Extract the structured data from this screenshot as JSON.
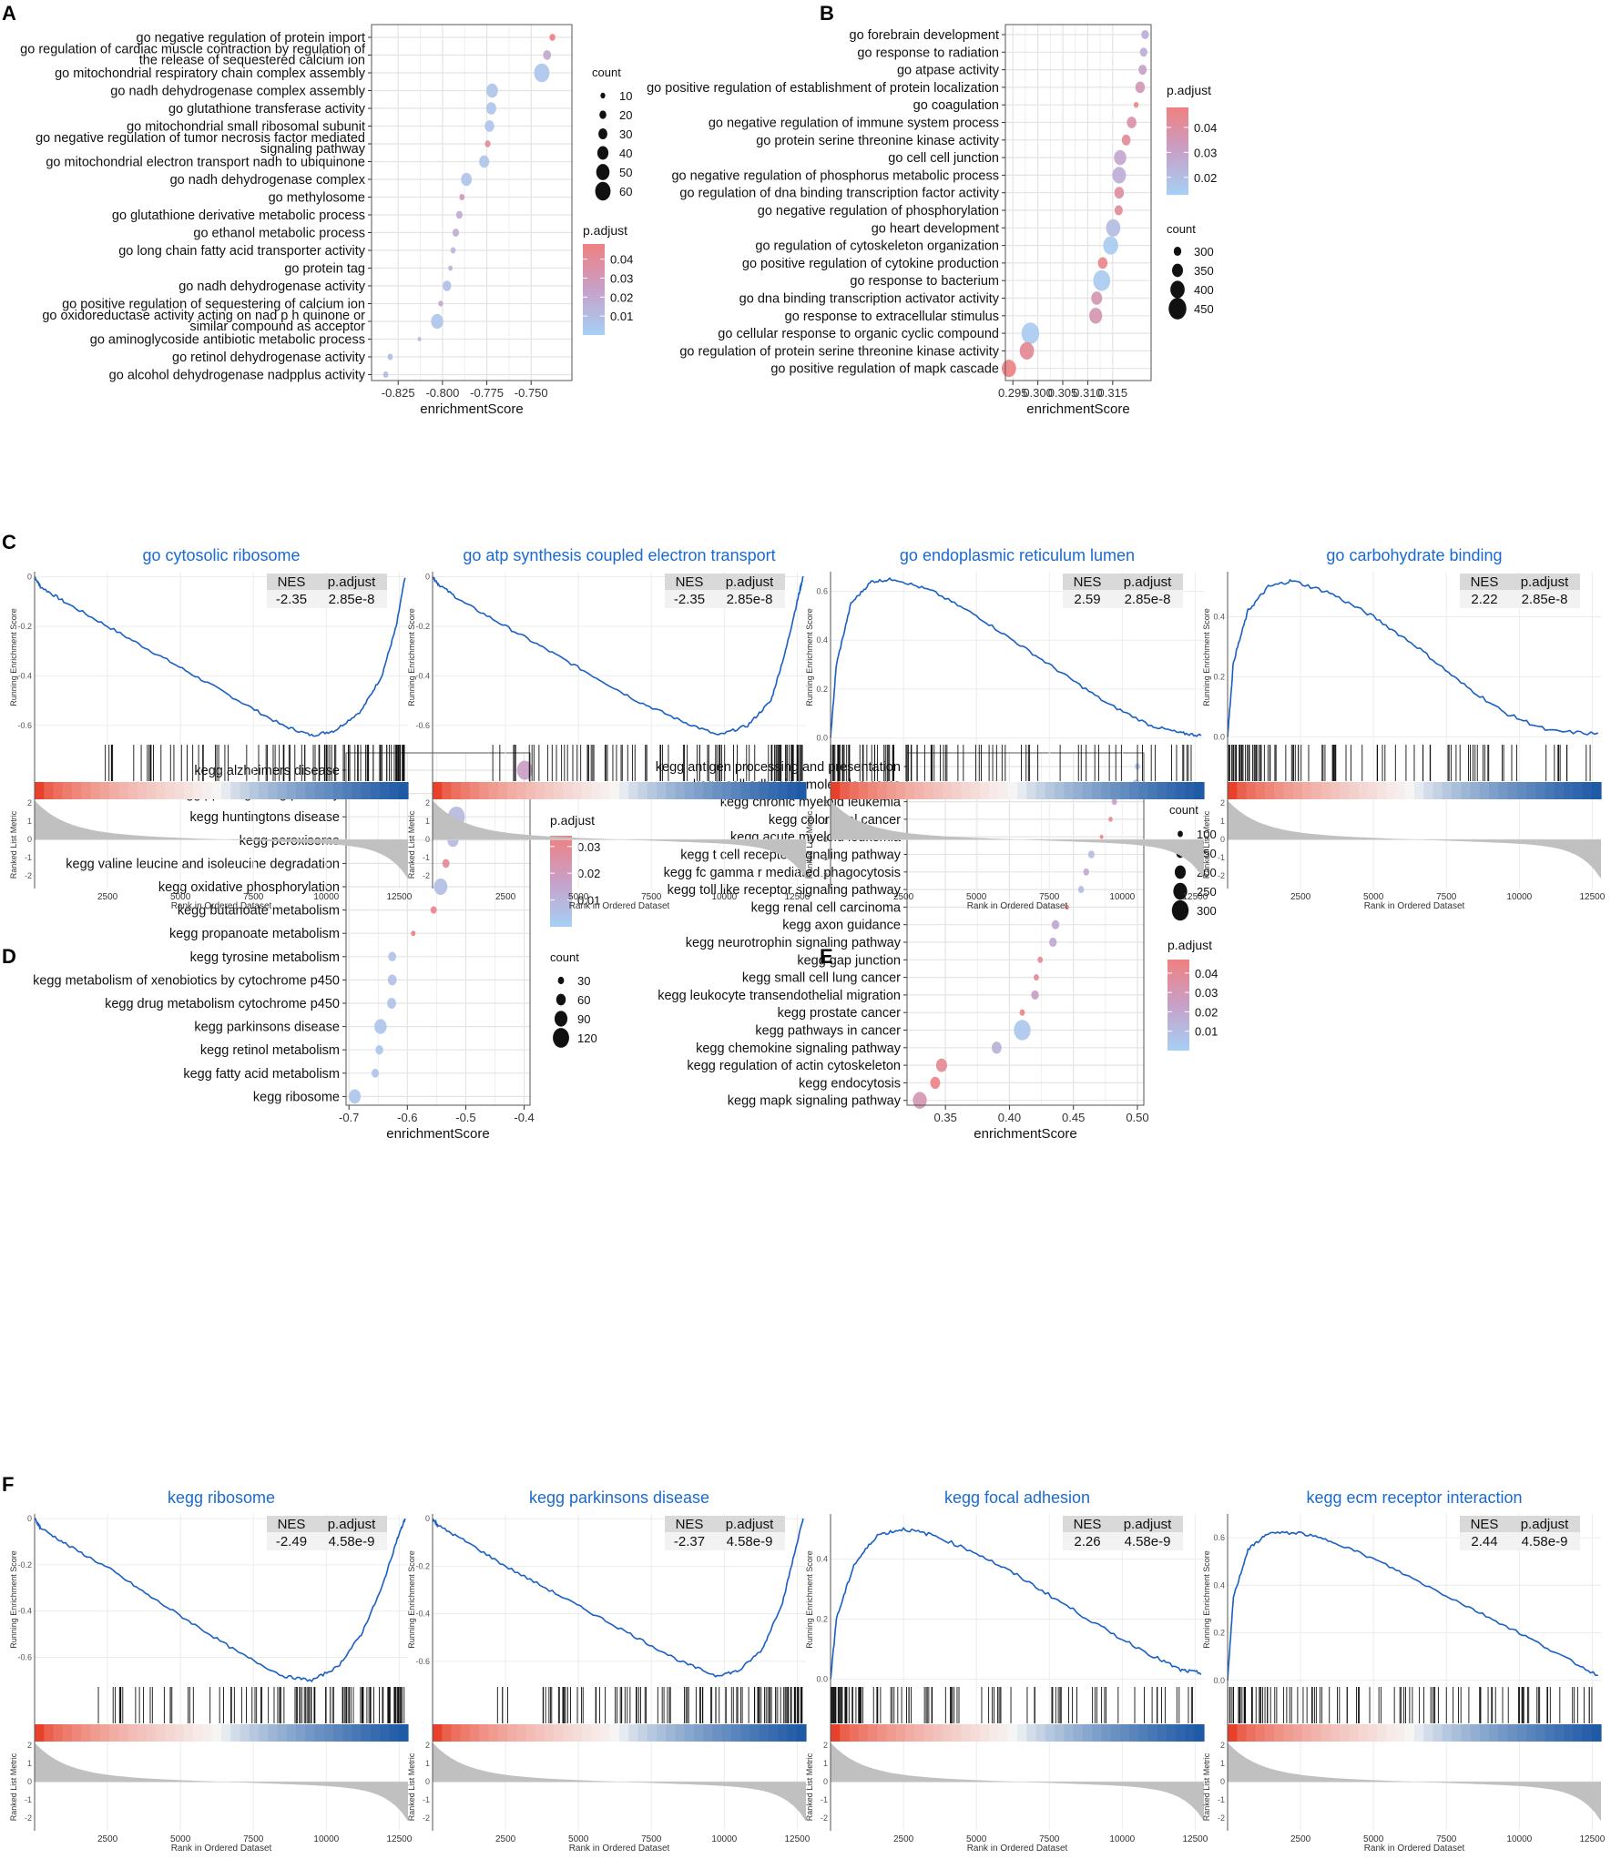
{
  "chart_data": [
    {
      "panel": "A",
      "type": "scatter",
      "xlabel": "enrichmentScore",
      "xlim": [
        -0.84,
        -0.727
      ],
      "xticks": [
        -0.825,
        -0.8,
        -0.775,
        -0.75
      ],
      "xtick_labels": [
        "-0.825",
        "-0.800",
        "-0.775",
        "-0.750"
      ],
      "padj_range": [
        0,
        0.048
      ],
      "size_range": [
        5,
        65
      ],
      "size_px": [
        2.5,
        11
      ],
      "categories": [
        "go negative regulation of protein import",
        "go regulation of cardiac muscle contraction by regulation of\nthe release of sequestered calcium ion",
        "go mitochondrial respiratory chain complex assembly",
        "go nadh dehydrogenase complex assembly",
        "go glutathione transferase activity",
        "go mitochondrial small ribosomal subunit",
        "go negative regulation of tumor necrosis factor mediated\nsignaling pathway",
        "go mitochondrial electron transport nadh to ubiquinone",
        "go nadh dehydrogenase complex",
        "go methylosome",
        "go glutathione derivative metabolic process",
        "go ethanol metabolic process",
        "go long chain fatty acid transporter activity",
        "go protein tag",
        "go nadh dehydrogenase activity",
        "go positive regulation of sequestering of calcium ion",
        "go oxidoreductase activity acting on nad p h quinone or\nsimilar compound as acceptor",
        "go aminoglycoside antibiotic metabolic process",
        "go retinol dehydrogenase activity",
        "go alcohol dehydrogenase nadpplus activity"
      ],
      "values": [
        -0.738,
        -0.741,
        -0.744,
        -0.772,
        -0.7725,
        -0.7735,
        -0.7745,
        -0.7765,
        -0.7865,
        -0.789,
        -0.7905,
        -0.7925,
        -0.794,
        -0.7955,
        -0.7975,
        -0.801,
        -0.803,
        -0.813,
        -0.8295,
        -0.832
      ],
      "count": [
        15,
        25,
        60,
        42,
        35,
        32,
        14,
        35,
        38,
        12,
        18,
        18,
        12,
        8,
        28,
        10,
        45,
        5,
        12,
        12
      ],
      "padj": [
        0.047,
        0.02,
        0.005,
        0.006,
        0.006,
        0.006,
        0.04,
        0.005,
        0.006,
        0.028,
        0.018,
        0.018,
        0.012,
        0.015,
        0.008,
        0.02,
        0.006,
        0.01,
        0.01,
        0.01
      ],
      "legend": {
        "count_title": "count",
        "count_labels": [
          "10",
          "20",
          "30",
          "40",
          "50",
          "60"
        ],
        "padj_title": "p.adjust",
        "padj_labels": [
          "0.04",
          "0.03",
          "0.02",
          "0.01"
        ]
      }
    },
    {
      "panel": "B",
      "type": "scatter",
      "xlabel": "enrichmentScore",
      "xlim": [
        0.2935,
        0.3227
      ],
      "xticks": [
        0.295,
        0.3,
        0.305,
        0.31,
        0.315
      ],
      "xtick_labels": [
        "0.295",
        "0.300",
        "0.305",
        "0.310",
        "0.315"
      ],
      "padj_range": [
        0.013,
        0.048
      ],
      "size_range": [
        255,
        475
      ],
      "size_px": [
        3,
        13
      ],
      "categories": [
        "go forebrain development",
        "go response to radiation",
        "go atpase activity",
        "go positive regulation of establishment of protein localization",
        "go coagulation",
        "go negative regulation of immune system process",
        "go protein serine threonine kinase activity",
        "go cell cell junction",
        "go negative regulation of phosphorus metabolic process",
        "go regulation of dna binding transcription factor activity",
        "go negative regulation of phosphorylation",
        "go heart development",
        "go regulation of cytoskeleton organization",
        "go positive regulation of cytokine production",
        "go response to bacterium",
        "go dna binding transcription activator activity",
        "go response to extracellular stimulus",
        "go cellular response to organic cyclic compound",
        "go regulation of protein serine threonine kinase activity",
        "go positive regulation of mapk cascade"
      ],
      "values": [
        0.3215,
        0.3212,
        0.321,
        0.3205,
        0.3197,
        0.3188,
        0.3177,
        0.3165,
        0.3163,
        0.3163,
        0.3162,
        0.3151,
        0.3146,
        0.313,
        0.3128,
        0.3118,
        0.3116,
        0.2985,
        0.2978,
        0.2942
      ],
      "count": [
        300,
        300,
        310,
        330,
        260,
        330,
        320,
        370,
        390,
        330,
        310,
        400,
        410,
        330,
        440,
        350,
        380,
        450,
        400,
        400
      ],
      "padj": [
        0.025,
        0.025,
        0.03,
        0.035,
        0.045,
        0.038,
        0.042,
        0.028,
        0.025,
        0.04,
        0.042,
        0.02,
        0.015,
        0.045,
        0.015,
        0.036,
        0.036,
        0.015,
        0.043,
        0.047
      ],
      "legend": {
        "padj_title": "p.adjust",
        "padj_labels": [
          "0.04",
          "0.03",
          "0.02"
        ],
        "count_title": "count",
        "count_labels": [
          "300",
          "350",
          "400",
          "450"
        ]
      }
    },
    {
      "panel": "D",
      "type": "scatter",
      "xlabel": "enrichmentScore",
      "xlim": [
        -0.705,
        -0.39
      ],
      "xticks": [
        -0.7,
        -0.6,
        -0.5,
        -0.4
      ],
      "xtick_labels": [
        "-0.7",
        "-0.6",
        "-0.5",
        "-0.4"
      ],
      "padj_range": [
        0,
        0.034
      ],
      "size_range": [
        15,
        135
      ],
      "size_px": [
        3,
        12
      ],
      "categories": [
        "kegg alzheimers disease",
        "kegg ppar signaling pathway",
        "kegg huntingtons disease",
        "kegg peroxisome",
        "kegg valine leucine and isoleucine degradation",
        "kegg oxidative phosphorylation",
        "kegg butanoate metabolism",
        "kegg propanoate metabolism",
        "kegg tyrosine metabolism",
        "kegg metabolism of xenobiotics by cytochrome p450",
        "kegg drug metabolism cytochrome p450",
        "kegg parkinsons disease",
        "kegg retinol metabolism",
        "kegg fatty acid metabolism",
        "kegg ribosome"
      ],
      "values": [
        -0.399,
        -0.507,
        -0.516,
        -0.522,
        -0.534,
        -0.543,
        -0.555,
        -0.59,
        -0.626,
        -0.626,
        -0.627,
        -0.646,
        -0.648,
        -0.655,
        -0.69
      ],
      "count": [
        115,
        65,
        125,
        75,
        40,
        95,
        30,
        15,
        45,
        55,
        55,
        85,
        45,
        40,
        80
      ],
      "padj": [
        0.018,
        0.022,
        0.008,
        0.008,
        0.028,
        0.006,
        0.031,
        0.034,
        0.005,
        0.005,
        0.005,
        0.004,
        0.004,
        0.005,
        0.004
      ],
      "legend": {
        "padj_title": "p.adjust",
        "padj_labels": [
          "0.03",
          "0.02",
          "0.01"
        ],
        "count_title": "count",
        "count_labels": [
          "30",
          "60",
          "90",
          "120"
        ]
      }
    },
    {
      "panel": "E",
      "type": "scatter",
      "xlabel": "enrichmentScore",
      "xlim": [
        0.32,
        0.505
      ],
      "xticks": [
        0.35,
        0.4,
        0.45,
        0.5
      ],
      "xtick_labels": [
        "0.35",
        "0.40",
        "0.45",
        "0.50"
      ],
      "padj_range": [
        0,
        0.047
      ],
      "size_range": [
        60,
        320
      ],
      "size_px": [
        2,
        12
      ],
      "categories": [
        "kegg antigen processing and presentation",
        "kegg cell adhesion molecules cams",
        "kegg chronic myeloid leukemia",
        "kegg colorectal cancer",
        "kegg acute myeloid leukemia",
        "kegg t cell receptor signaling pathway",
        "kegg fc gamma r mediated phagocytosis",
        "kegg toll like receptor signaling pathway",
        "kegg renal cell carcinoma",
        "kegg axon guidance",
        "kegg neurotrophin signaling pathway",
        "kegg gap junction",
        "kegg small cell lung cancer",
        "kegg leukocyte transendothelial migration",
        "kegg prostate cancer",
        "kegg pathways in cancer",
        "kegg chemokine signaling pathway",
        "kegg regulation of actin cytoskeleton",
        "kegg endocytosis",
        "kegg mapk signaling pathway"
      ],
      "values": [
        0.5,
        0.499,
        0.482,
        0.479,
        0.472,
        0.464,
        0.46,
        0.456,
        0.445,
        0.436,
        0.434,
        0.424,
        0.421,
        0.42,
        0.41,
        0.41,
        0.39,
        0.347,
        0.342,
        0.33
      ],
      "count": [
        100,
        140,
        100,
        80,
        70,
        120,
        110,
        110,
        80,
        140,
        140,
        100,
        100,
        140,
        100,
        300,
        180,
        200,
        180,
        250
      ],
      "padj": [
        0.005,
        0.005,
        0.025,
        0.04,
        0.045,
        0.01,
        0.018,
        0.01,
        0.045,
        0.02,
        0.02,
        0.04,
        0.04,
        0.025,
        0.045,
        0.004,
        0.015,
        0.04,
        0.045,
        0.03
      ],
      "legend": {
        "count_title": "count",
        "count_labels": [
          "100",
          "150",
          "200",
          "250",
          "300"
        ],
        "padj_title": "p.adjust",
        "padj_labels": [
          "0.04",
          "0.03",
          "0.02",
          "0.01"
        ]
      }
    },
    {
      "panel": "C1",
      "type": "line",
      "title": "go cytosolic ribosome",
      "nes": "-2.35",
      "padj": "2.85e-8",
      "es_ticks": [
        "0",
        "-0.2",
        "-0.4",
        "-0.6"
      ],
      "ylim": [
        -0.67,
        0.02
      ],
      "es_curve": [
        0,
        -0.04,
        -0.1,
        -0.2,
        -0.3,
        -0.4,
        -0.5,
        -0.6,
        -0.64,
        -0.62,
        -0.54,
        -0.4,
        -0.2,
        0
      ],
      "x": [
        0,
        200,
        1000,
        2500,
        4000,
        5500,
        7000,
        8500,
        9500,
        10300,
        11200,
        11900,
        12400,
        12700
      ],
      "trend": "neg",
      "metric_ticks": [
        "2",
        "1",
        "0",
        "-1",
        "-2"
      ],
      "ylabel_top": "Running Enrichment Score",
      "ylabel_bottom": "Ranked List Metric"
    },
    {
      "panel": "C2",
      "type": "line",
      "title": "go atp synthesis coupled electron transport",
      "nes": "-2.35",
      "padj": "2.85e-8",
      "es_ticks": [
        "0",
        "-0.2",
        "-0.4",
        "-0.6"
      ],
      "ylim": [
        -0.67,
        0.02
      ],
      "es_curve": [
        0,
        -0.03,
        -0.1,
        -0.2,
        -0.3,
        -0.4,
        -0.5,
        -0.58,
        -0.64,
        -0.6,
        -0.5,
        -0.3,
        -0.1,
        0
      ],
      "x": [
        0,
        200,
        1000,
        2500,
        4000,
        5500,
        7000,
        8500,
        9800,
        10800,
        11600,
        12100,
        12500,
        12700
      ],
      "trend": "neg",
      "metric_ticks": [
        "2",
        "1",
        "0",
        "-1",
        "-2"
      ],
      "ylabel_top": "Running Enrichment Score",
      "ylabel_bottom": "Ranked List Metric"
    },
    {
      "panel": "C3",
      "type": "line",
      "title": "go endoplasmic reticulum lumen",
      "nes": "2.59",
      "padj": "2.85e-8",
      "es_ticks": [
        "0.6",
        "0.4",
        "0.2",
        "0.0"
      ],
      "ylim": [
        -0.02,
        0.68
      ],
      "es_curve": [
        0,
        0.3,
        0.55,
        0.64,
        0.65,
        0.6,
        0.5,
        0.38,
        0.26,
        0.14,
        0.05,
        0.02,
        0.01
      ],
      "x": [
        0,
        200,
        700,
        1400,
        2200,
        3500,
        5000,
        6500,
        8000,
        9500,
        11000,
        12000,
        12700
      ],
      "trend": "pos",
      "metric_ticks": [
        "2",
        "1",
        "0",
        "-1",
        "-2"
      ],
      "ylabel_top": "Running Enrichment Score",
      "ylabel_bottom": "Ranked List Metric"
    },
    {
      "panel": "C4",
      "type": "line",
      "title": "go carbohydrate binding",
      "nes": "2.22",
      "padj": "2.85e-8",
      "es_ticks": [
        "0.4",
        "0.2",
        "0.0"
      ],
      "ylim": [
        -0.02,
        0.55
      ],
      "es_curve": [
        0,
        0.25,
        0.42,
        0.5,
        0.52,
        0.48,
        0.4,
        0.3,
        0.18,
        0.08,
        0.02,
        0.01
      ],
      "x": [
        0,
        200,
        700,
        1400,
        2200,
        3500,
        5000,
        6500,
        8000,
        9500,
        11000,
        12700
      ],
      "trend": "pos",
      "metric_ticks": [
        "2",
        "1",
        "0",
        "-1",
        "-2"
      ],
      "ylabel_top": "Running Enrichment Score",
      "ylabel_bottom": "Ranked List Metric"
    },
    {
      "panel": "F1",
      "type": "line",
      "title": "kegg ribosome",
      "nes": "-2.49",
      "padj": "4.58e-9",
      "es_ticks": [
        "0",
        "-0.2",
        "-0.4",
        "-0.6"
      ],
      "ylim": [
        -0.72,
        0.02
      ],
      "es_curve": [
        0,
        -0.04,
        -0.12,
        -0.22,
        -0.34,
        -0.46,
        -0.58,
        -0.68,
        -0.7,
        -0.64,
        -0.5,
        -0.3,
        -0.1,
        0
      ],
      "x": [
        0,
        200,
        1200,
        2600,
        4000,
        5500,
        7000,
        8500,
        9500,
        10400,
        11200,
        11900,
        12400,
        12700
      ],
      "trend": "neg",
      "metric_ticks": [
        "2",
        "1",
        "0",
        "-1",
        "-2"
      ],
      "ylabel_top": "Running Enrichment Score",
      "ylabel_bottom": "Ranked List Metric"
    },
    {
      "panel": "F2",
      "type": "line",
      "title": "kegg parkinsons disease",
      "nes": "-2.37",
      "padj": "4.58e-9",
      "es_ticks": [
        "0",
        "-0.2",
        "-0.4",
        "-0.6"
      ],
      "ylim": [
        -0.7,
        0.02
      ],
      "es_curve": [
        0,
        -0.03,
        -0.1,
        -0.2,
        -0.3,
        -0.4,
        -0.5,
        -0.6,
        -0.66,
        -0.64,
        -0.55,
        -0.35,
        -0.1,
        0
      ],
      "x": [
        0,
        200,
        1200,
        2500,
        4000,
        5500,
        7000,
        8500,
        9700,
        10500,
        11300,
        12000,
        12500,
        12700
      ],
      "trend": "neg",
      "metric_ticks": [
        "2",
        "1",
        "0",
        "-1",
        "-2"
      ],
      "ylabel_top": "Running Enrichment Score",
      "ylabel_bottom": "Ranked List Metric"
    },
    {
      "panel": "F3",
      "type": "line",
      "title": "kegg focal adhesion",
      "nes": "2.26",
      "padj": "4.58e-9",
      "es_ticks": [
        "0.4",
        "0.2",
        "0.0"
      ],
      "ylim": [
        -0.02,
        0.55
      ],
      "es_curve": [
        0,
        0.2,
        0.38,
        0.48,
        0.5,
        0.48,
        0.42,
        0.34,
        0.25,
        0.16,
        0.08,
        0.03,
        0.02
      ],
      "x": [
        0,
        200,
        800,
        1600,
        2500,
        3500,
        5000,
        6500,
        8000,
        9500,
        11000,
        12000,
        12700
      ],
      "trend": "pos",
      "metric_ticks": [
        "2",
        "1",
        "0",
        "-1",
        "-2"
      ],
      "ylabel_top": "Running Enrichment Score",
      "ylabel_bottom": "Ranked List Metric"
    },
    {
      "panel": "F4",
      "type": "line",
      "title": "kegg ecm receptor interaction",
      "nes": "2.44",
      "padj": "4.58e-9",
      "es_ticks": [
        "0.6",
        "0.4",
        "0.2",
        "0.0"
      ],
      "ylim": [
        -0.02,
        0.7
      ],
      "es_curve": [
        0,
        0.35,
        0.55,
        0.62,
        0.62,
        0.58,
        0.5,
        0.4,
        0.3,
        0.2,
        0.1,
        0.02
      ],
      "x": [
        0,
        200,
        700,
        1400,
        2500,
        3700,
        5200,
        6800,
        8400,
        10000,
        11500,
        12700
      ],
      "trend": "pos",
      "metric_ticks": [
        "2",
        "1",
        "0",
        "-1",
        "-2"
      ],
      "ylabel_top": "Running Enrichment Score",
      "ylabel_bottom": "Ranked List Metric"
    }
  ],
  "gsea_common": {
    "xlabel": "Rank in Ordered Dataset",
    "xticks": [
      2500,
      5000,
      7500,
      10000,
      12500
    ],
    "xtick_labels": [
      "2500",
      "5000",
      "7500",
      "10000",
      "12500"
    ],
    "xmax": 12800,
    "nes_label": "NES",
    "padj_label": "p.adjust"
  },
  "panel_letters": [
    "A",
    "B",
    "C",
    "D",
    "E",
    "F"
  ],
  "colors": {
    "padj_high": "#f08080",
    "padj_mid": "#c7a0c8",
    "padj_low": "#a6d0f5",
    "gsea_line": "#1a5fc4",
    "gsea_title": "#1a6ad0",
    "grid": "#e4e4e4",
    "metric_fill": "#c0c0c0"
  }
}
